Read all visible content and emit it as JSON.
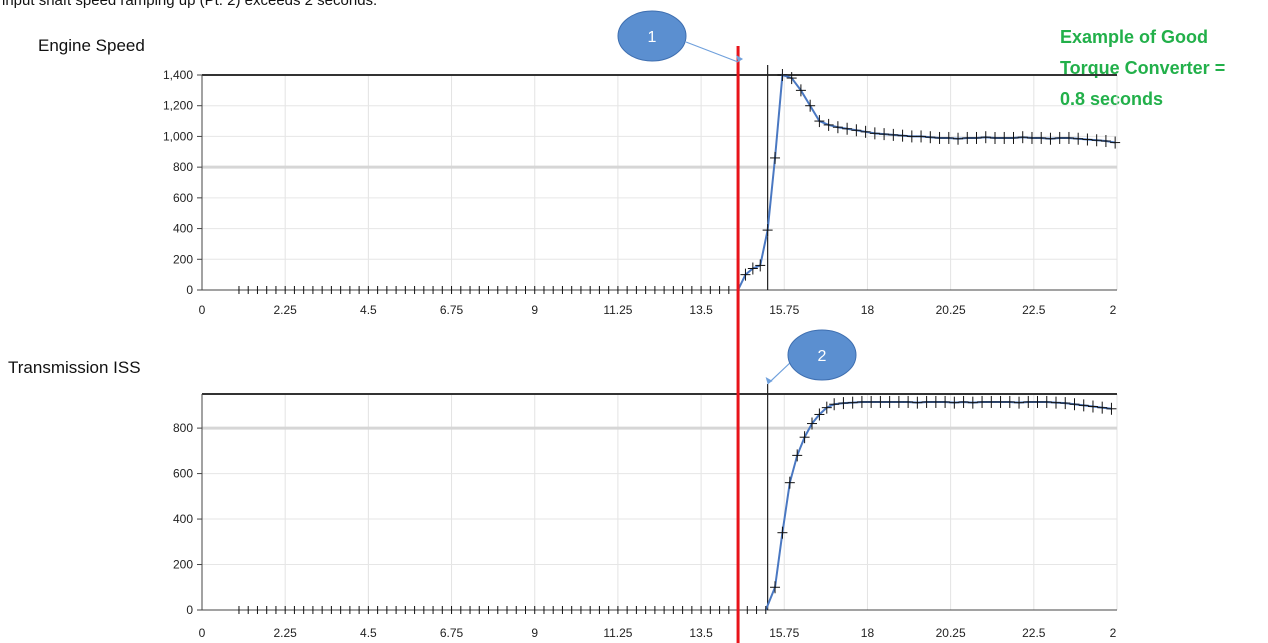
{
  "top_text": "input shaft speed ramping up (Pt. 2) exceeds 2 seconds.",
  "annotation": {
    "lines": [
      "Example of Good",
      "Torque Converter =",
      "0.8 seconds"
    ],
    "color": "#22b04a"
  },
  "markers": [
    {
      "label": "1",
      "chart": 0,
      "target_x": 14.5
    },
    {
      "label": "2",
      "chart": 1,
      "target_x": 15.3
    }
  ],
  "red_line_x": 14.5,
  "colors": {
    "series": "#4a78c2",
    "marker_fill": "#5b8fd0",
    "red_line": "#e8131a",
    "point_mark": "#111111"
  },
  "chart_data": [
    {
      "type": "line",
      "title": "Engine Speed",
      "x_ticks": [
        "0",
        "2.25",
        "4.5",
        "6.75",
        "9",
        "11.25",
        "13.5",
        "15.75",
        "18",
        "20.25",
        "22.5",
        "2"
      ],
      "y_ticks": [
        "0",
        "200",
        "400",
        "600",
        "800",
        "1,000",
        "1,200",
        "1,400"
      ],
      "xlim": [
        0,
        24.75
      ],
      "ylim": [
        0,
        1400
      ],
      "grid": true,
      "vertical_cursor_x": 15.3,
      "series": [
        {
          "x": [
            1,
            1.25,
            1.5,
            1.75,
            2,
            2.25,
            2.5,
            2.75,
            3,
            3.25,
            3.5,
            3.75,
            4,
            4.25,
            4.5,
            4.75,
            5,
            5.25,
            5.5,
            5.75,
            6,
            6.25,
            6.5,
            6.75,
            7,
            7.25,
            7.5,
            7.75,
            8,
            8.25,
            8.5,
            8.75,
            9,
            9.25,
            9.5,
            9.75,
            10,
            10.25,
            10.5,
            10.75,
            11,
            11.25,
            11.5,
            11.75,
            12,
            12.25,
            12.5,
            12.75,
            13,
            13.25,
            13.5,
            13.75,
            14,
            14.25,
            14.5,
            14.7,
            14.9,
            15.1,
            15.3,
            15.5,
            15.7,
            15.95,
            16.2,
            16.45,
            16.7,
            16.95,
            17.2,
            17.45,
            17.7,
            17.95,
            18.2,
            18.45,
            18.7,
            18.95,
            19.2,
            19.45,
            19.7,
            19.95,
            20.2,
            20.45,
            20.7,
            20.95,
            21.2,
            21.45,
            21.7,
            21.95,
            22.2,
            22.45,
            22.7,
            22.95,
            23.2,
            23.45,
            23.7,
            23.95,
            24.2,
            24.45,
            24.7
          ],
          "y": [
            0,
            0,
            0,
            0,
            0,
            0,
            0,
            0,
            0,
            0,
            0,
            0,
            0,
            0,
            0,
            0,
            0,
            0,
            0,
            0,
            0,
            0,
            0,
            0,
            0,
            0,
            0,
            0,
            0,
            0,
            0,
            0,
            0,
            0,
            0,
            0,
            0,
            0,
            0,
            0,
            0,
            0,
            0,
            0,
            0,
            0,
            0,
            0,
            0,
            0,
            0,
            0,
            0,
            0,
            0,
            100,
            140,
            160,
            390,
            860,
            1400,
            1380,
            1300,
            1200,
            1100,
            1075,
            1060,
            1050,
            1040,
            1030,
            1020,
            1015,
            1010,
            1005,
            1000,
            1000,
            995,
            990,
            990,
            985,
            990,
            990,
            995,
            990,
            990,
            990,
            995,
            990,
            990,
            985,
            990,
            990,
            985,
            980,
            975,
            970,
            960
          ]
        }
      ]
    },
    {
      "type": "line",
      "title": "Transmission  ISS",
      "x_ticks": [
        "0",
        "2.25",
        "4.5",
        "6.75",
        "9",
        "11.25",
        "13.5",
        "15.75",
        "18",
        "20.25",
        "22.5",
        "2"
      ],
      "y_ticks": [
        "0",
        "200",
        "400",
        "600",
        "800"
      ],
      "xlim": [
        0,
        24.75
      ],
      "ylim": [
        0,
        950
      ],
      "grid": true,
      "vertical_cursor_x": 15.3,
      "series": [
        {
          "x": [
            1,
            1.25,
            1.5,
            1.75,
            2,
            2.25,
            2.5,
            2.75,
            3,
            3.25,
            3.5,
            3.75,
            4,
            4.25,
            4.5,
            4.75,
            5,
            5.25,
            5.5,
            5.75,
            6,
            6.25,
            6.5,
            6.75,
            7,
            7.25,
            7.5,
            7.75,
            8,
            8.25,
            8.5,
            8.75,
            9,
            9.25,
            9.5,
            9.75,
            10,
            10.25,
            10.5,
            10.75,
            11,
            11.25,
            11.5,
            11.75,
            12,
            12.25,
            12.5,
            12.75,
            13,
            13.25,
            13.5,
            13.75,
            14,
            14.25,
            14.5,
            14.75,
            15,
            15.25,
            15.5,
            15.7,
            15.9,
            16.1,
            16.3,
            16.5,
            16.7,
            16.9,
            17.1,
            17.35,
            17.6,
            17.85,
            18.1,
            18.35,
            18.6,
            18.85,
            19.1,
            19.35,
            19.6,
            19.85,
            20.1,
            20.35,
            20.6,
            20.85,
            21.1,
            21.35,
            21.6,
            21.85,
            22.1,
            22.35,
            22.6,
            22.85,
            23.1,
            23.35,
            23.6,
            23.85,
            24.1,
            24.35,
            24.6
          ],
          "y": [
            0,
            0,
            0,
            0,
            0,
            0,
            0,
            0,
            0,
            0,
            0,
            0,
            0,
            0,
            0,
            0,
            0,
            0,
            0,
            0,
            0,
            0,
            0,
            0,
            0,
            0,
            0,
            0,
            0,
            0,
            0,
            0,
            0,
            0,
            0,
            0,
            0,
            0,
            0,
            0,
            0,
            0,
            0,
            0,
            0,
            0,
            0,
            0,
            0,
            0,
            0,
            0,
            0,
            0,
            0,
            0,
            0,
            0,
            100,
            340,
            560,
            680,
            760,
            820,
            860,
            890,
            905,
            910,
            912,
            915,
            915,
            915,
            915,
            915,
            915,
            912,
            915,
            915,
            915,
            912,
            915,
            912,
            915,
            915,
            915,
            915,
            912,
            915,
            915,
            915,
            912,
            910,
            905,
            900,
            895,
            890,
            885
          ]
        }
      ]
    }
  ]
}
